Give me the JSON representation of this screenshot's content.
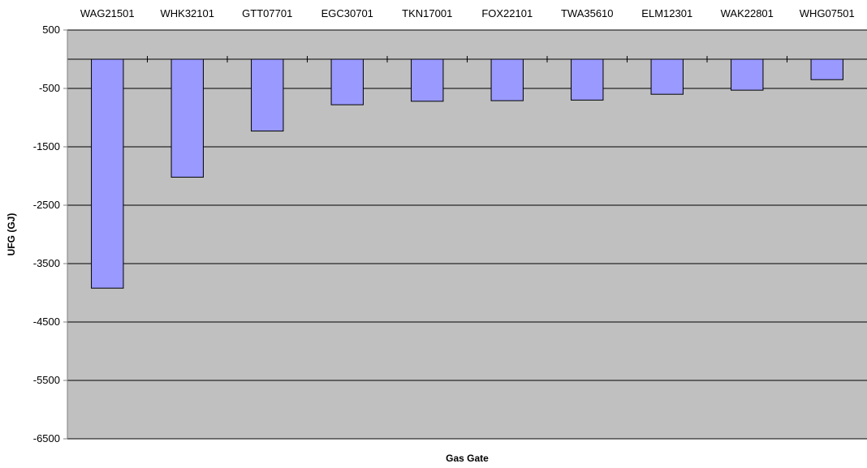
{
  "chart_data": {
    "type": "bar",
    "title": "",
    "xlabel": "Gas Gate",
    "ylabel": "UFG (GJ)",
    "categories": [
      "WAG21501",
      "WHK32101",
      "GTT07701",
      "EGC30701",
      "TKN17001",
      "FOX22101",
      "TWA35610",
      "ELM12301",
      "WAK22801",
      "WHG07501"
    ],
    "values": [
      -3920,
      -2020,
      -1230,
      -780,
      -720,
      -710,
      -700,
      -600,
      -530,
      -350
    ],
    "ylim": [
      -6500,
      500
    ],
    "yticks": [
      500,
      -500,
      -1500,
      -2500,
      -3500,
      -4500,
      -5500,
      -6500
    ],
    "category_labels_position": "top",
    "grid": true,
    "legend": "none",
    "colors": {
      "plot_background": "#c0c0c0",
      "bar_fill": "#9999ff",
      "bar_stroke": "#000000",
      "gridline": "#000000",
      "axis": "#808080"
    }
  }
}
